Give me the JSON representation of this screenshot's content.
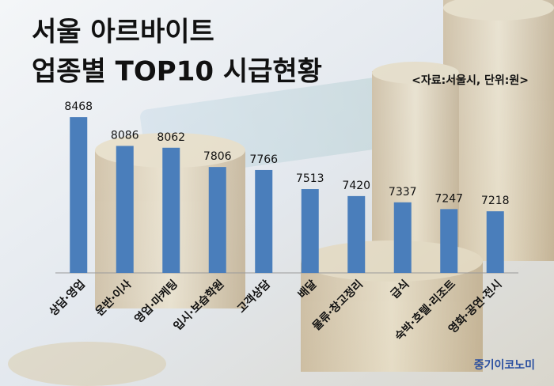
{
  "chart_data": {
    "type": "bar",
    "title": [
      "서울 아르바이트",
      "업종별 TOP10 시급현황"
    ],
    "subtitle": "<자료:서울시, 단위:원>",
    "annotation": "중기이코노미",
    "categories": [
      "상담·영업",
      "운반·이사",
      "영업·마케팅",
      "입시·보습학원",
      "고객상담",
      "배달",
      "물류·창고정리",
      "급식",
      "숙박·호텔·리조트",
      "영화·공연·전시"
    ],
    "values": [
      8468,
      8086,
      8062,
      7806,
      7766,
      7513,
      7420,
      7337,
      7247,
      7218
    ],
    "color": "#4a7ebb",
    "ylim": [
      6400,
      8800
    ],
    "grid": false
  }
}
